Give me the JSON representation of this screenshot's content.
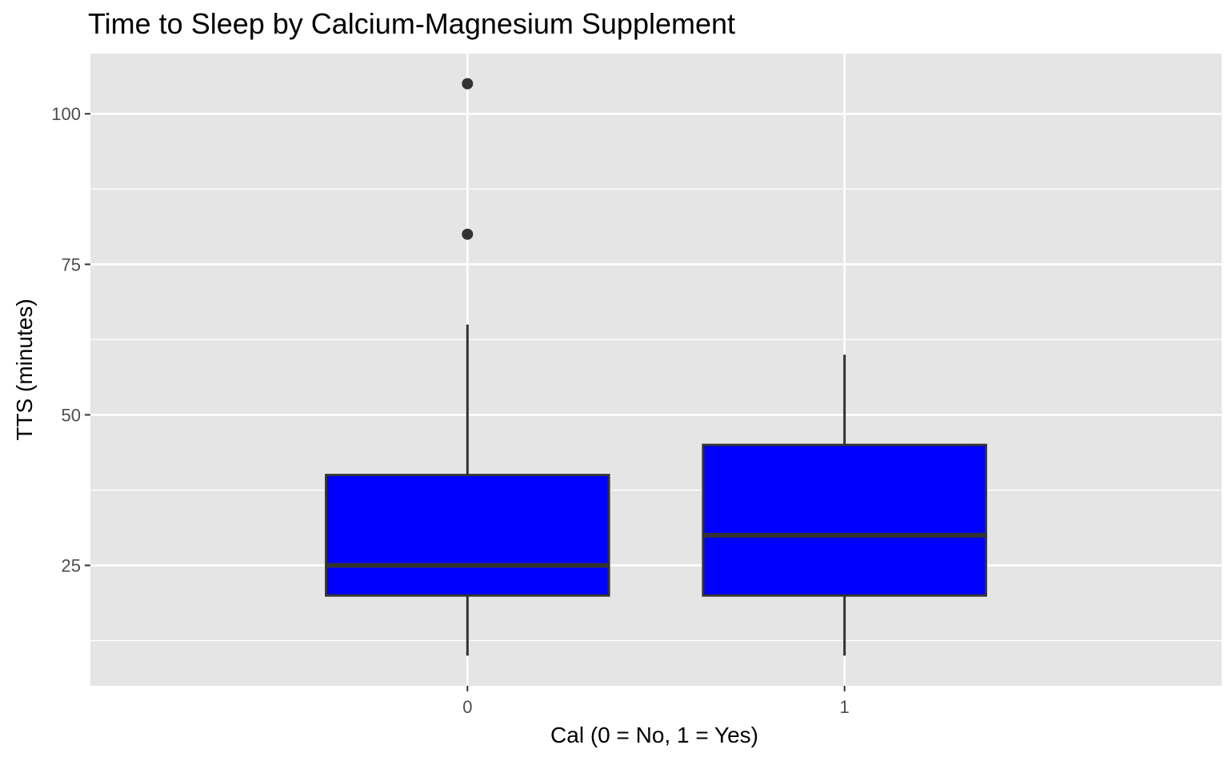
{
  "chart_data": {
    "type": "box",
    "title": "Time to Sleep by Calcium-Magnesium Supplement",
    "xlabel": "Cal (0 = No, 1 = Yes)",
    "ylabel": "TTS (minutes)",
    "ylim": [
      5,
      110
    ],
    "yticks": [
      25,
      50,
      75,
      100
    ],
    "grid": true,
    "fill_color": "#0000ff",
    "outline_color": "#333333",
    "panel_color": "#e5e5e5",
    "categories": [
      "0",
      "1"
    ],
    "boxes": [
      {
        "category": "0",
        "whisker_low": 10,
        "q1": 20,
        "median": 25,
        "q3": 40,
        "whisker_high": 65,
        "outliers": [
          80,
          105
        ]
      },
      {
        "category": "1",
        "whisker_low": 10,
        "q1": 20,
        "median": 30,
        "q3": 45,
        "whisker_high": 60,
        "outliers": []
      }
    ]
  }
}
